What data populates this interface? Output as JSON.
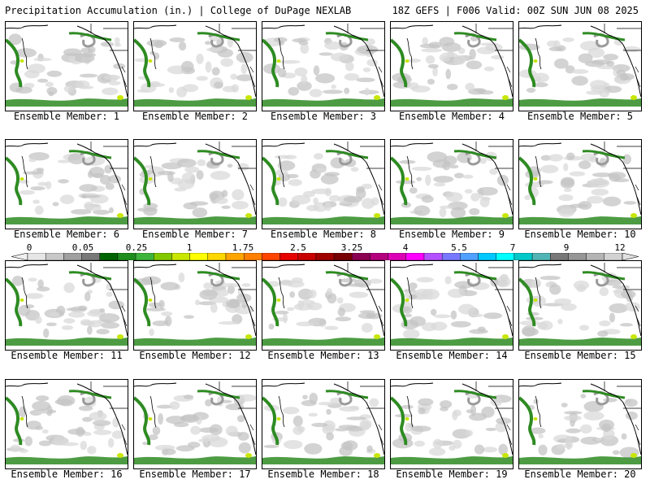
{
  "header": {
    "title": "Precipitation Accumulation (in.) | College of DuPage NEXLAB",
    "run_info": "18Z GEFS | F006 Valid: 00Z SUN JUN 08 2025"
  },
  "panels": [
    {
      "label": "Ensemble Member: 1"
    },
    {
      "label": "Ensemble Member: 2"
    },
    {
      "label": "Ensemble Member: 3"
    },
    {
      "label": "Ensemble Member: 4"
    },
    {
      "label": "Ensemble Member: 5"
    },
    {
      "label": "Ensemble Member: 6"
    },
    {
      "label": "Ensemble Member: 7"
    },
    {
      "label": "Ensemble Member: 8"
    },
    {
      "label": "Ensemble Member: 9"
    },
    {
      "label": "Ensemble Member: 10"
    },
    {
      "label": "Ensemble Member: 11"
    },
    {
      "label": "Ensemble Member: 12"
    },
    {
      "label": "Ensemble Member: 13"
    },
    {
      "label": "Ensemble Member: 14"
    },
    {
      "label": "Ensemble Member: 15"
    },
    {
      "label": "Ensemble Member: 16"
    },
    {
      "label": "Ensemble Member: 17"
    },
    {
      "label": "Ensemble Member: 18"
    },
    {
      "label": "Ensemble Member: 19"
    },
    {
      "label": "Ensemble Member: 20"
    }
  ],
  "colorbar": {
    "tick_labels": [
      "0",
      "0.05",
      "0.25",
      "1",
      "1.75",
      "2.5",
      "3.25",
      "4",
      "5.5",
      "7",
      "9",
      "12"
    ],
    "colors": [
      "#e6e6e6",
      "#c8c8c8",
      "#a0a0a0",
      "#787878",
      "#006400",
      "#1e8c1e",
      "#3cb43c",
      "#82c800",
      "#c8e600",
      "#ffff00",
      "#ffd700",
      "#ffa500",
      "#ff7f00",
      "#ff4500",
      "#e60000",
      "#c80000",
      "#a00000",
      "#780000",
      "#8b0050",
      "#b4007d",
      "#dc00b4",
      "#ff00ff",
      "#b450ff",
      "#7878ff",
      "#50a0ff",
      "#00c8ff",
      "#00ffff",
      "#00c8c8",
      "#50b4b4",
      "#787878",
      "#969696",
      "#b4b4b4",
      "#d2d2d2"
    ]
  }
}
